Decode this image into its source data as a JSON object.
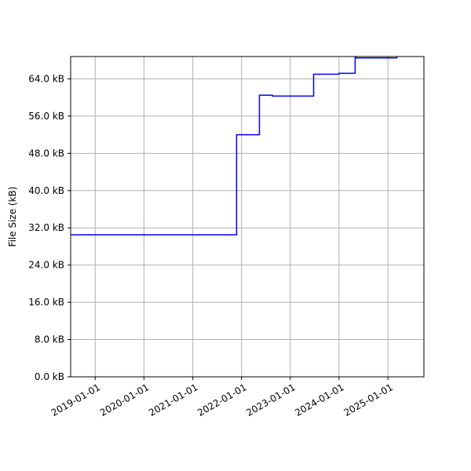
{
  "chart_data": {
    "type": "line",
    "title": "",
    "xlabel": "",
    "ylabel": "File Size (kB)",
    "y_unit_suffix": " kB",
    "xlim": [
      "2018-07-01",
      "2025-09-28"
    ],
    "ylim": [
      0,
      68.8
    ],
    "grid": true,
    "x_ticks": [
      "2019-01-01",
      "2020-01-01",
      "2021-01-01",
      "2022-01-01",
      "2023-01-01",
      "2024-01-01",
      "2025-01-01"
    ],
    "x_tick_labels": [
      "2019-01-01",
      "2020-01-01",
      "2021-01-01",
      "2022-01-01",
      "2023-01-01",
      "2024-01-01",
      "2025-01-01"
    ],
    "y_ticks": [
      0,
      8,
      16,
      24,
      32,
      40,
      48,
      56,
      64
    ],
    "y_tick_labels": [
      "0.0 kB",
      "8.0 kB",
      "16.0 kB",
      "24.0 kB",
      "32.0 kB",
      "40.0 kB",
      "48.0 kB",
      "56.0 kB",
      "64.0 kB"
    ],
    "series": [
      {
        "color": "#0000ff",
        "step": true,
        "x": [
          "2018-07-01",
          "2021-11-25",
          "2022-05-15",
          "2022-08-20",
          "2023-06-25",
          "2024-01-01",
          "2024-05-01",
          "2024-05-10",
          "2025-03-10",
          "2025-03-25"
        ],
        "y": [
          30.5,
          52.0,
          60.5,
          60.3,
          65.0,
          65.2,
          69.0,
          68.5,
          69.0,
          69.5
        ]
      }
    ]
  }
}
